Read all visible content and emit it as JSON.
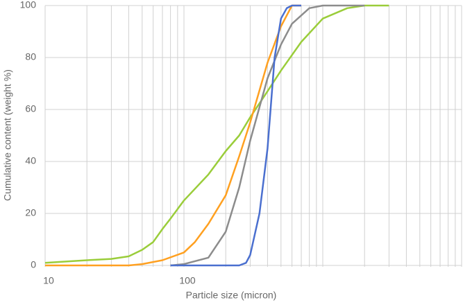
{
  "chart_data": {
    "type": "line",
    "x_label": "Particle size (micron)",
    "y_label": "Cumulative content (weight %)",
    "xlim": [
      10,
      10000
    ],
    "xticks": [
      10,
      100
    ],
    "xscale": "log",
    "ylim": [
      0,
      100
    ],
    "yticks": [
      0,
      20,
      40,
      60,
      80,
      100
    ],
    "grid": true,
    "series": [
      {
        "color": "#9acd3a",
        "x": [
          10,
          20,
          30,
          40,
          50,
          60,
          70,
          80,
          100,
          150,
          200,
          250,
          300,
          400,
          500,
          700,
          1000,
          1500,
          2000,
          3000
        ],
        "values": [
          1,
          2,
          2.5,
          3.5,
          6,
          9,
          14,
          18,
          25,
          35,
          44,
          50,
          57,
          67,
          75,
          86,
          95,
          99,
          100,
          100
        ]
      },
      {
        "color": "#ffa020",
        "x": [
          10,
          20,
          40,
          50,
          70,
          100,
          120,
          150,
          200,
          250,
          300,
          400,
          500,
          600,
          700
        ],
        "values": [
          0,
          0,
          0,
          0.5,
          2,
          5,
          9,
          16,
          27,
          42,
          55,
          78,
          92,
          100,
          100
        ]
      },
      {
        "color": "#8c8c8c",
        "x": [
          80,
          100,
          150,
          200,
          250,
          300,
          400,
          500,
          600,
          800,
          1000,
          2000
        ],
        "values": [
          0,
          0.5,
          3,
          13,
          30,
          48,
          72,
          85,
          93,
          99,
          100,
          100
        ]
      },
      {
        "color": "#4a6fcf",
        "x": [
          80,
          250,
          280,
          300,
          350,
          400,
          450,
          500,
          550,
          600,
          700
        ],
        "values": [
          0,
          0,
          1,
          4,
          20,
          45,
          80,
          95,
          99,
          100,
          100
        ]
      }
    ]
  }
}
